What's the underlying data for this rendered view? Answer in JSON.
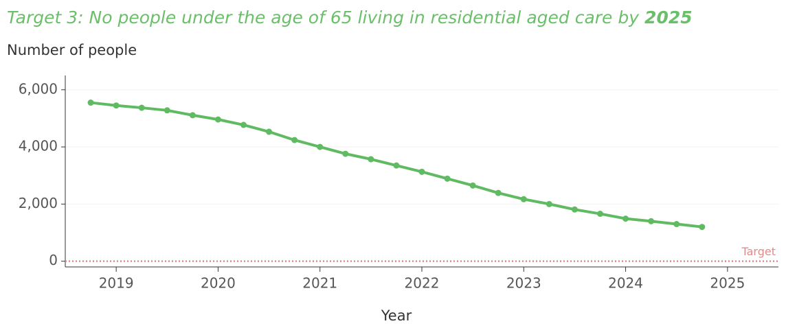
{
  "chart_data": {
    "type": "line",
    "title": {
      "text": "Target 3: No people under the age of 65 living in residential aged care by",
      "emphasis": "2025"
    },
    "y_label": "Number of people",
    "x_label": "Year",
    "x": [
      2018.75,
      2019,
      2019.25,
      2019.5,
      2019.75,
      2020,
      2020.25,
      2020.5,
      2020.75,
      2021,
      2021.25,
      2021.5,
      2021.75,
      2022,
      2022.25,
      2022.5,
      2022.75,
      2023,
      2023.25,
      2023.5,
      2023.75,
      2024,
      2024.25,
      2024.5,
      2024.75
    ],
    "series": [
      {
        "name": "Number of people",
        "color": "#5fba62",
        "values": [
          5550,
          5450,
          5370,
          5280,
          5110,
          4960,
          4770,
          4530,
          4240,
          4000,
          3760,
          3570,
          3350,
          3130,
          2890,
          2650,
          2390,
          2170,
          2000,
          1810,
          1660,
          1490,
          1400,
          1300,
          1200
        ]
      }
    ],
    "target": {
      "label": "Target",
      "value": 0,
      "color": "#e08a8a"
    },
    "xlim": [
      2018.5,
      2025.5
    ],
    "xticks": [
      2019,
      2020,
      2021,
      2022,
      2023,
      2024,
      2025
    ],
    "ylim": [
      -200,
      6500
    ],
    "yticks": [
      0,
      {
        "value": 2000,
        "label": "2,000"
      },
      {
        "value": 4000,
        "label": "4,000"
      },
      {
        "value": 6000,
        "label": "6,000"
      }
    ],
    "grid": true
  }
}
